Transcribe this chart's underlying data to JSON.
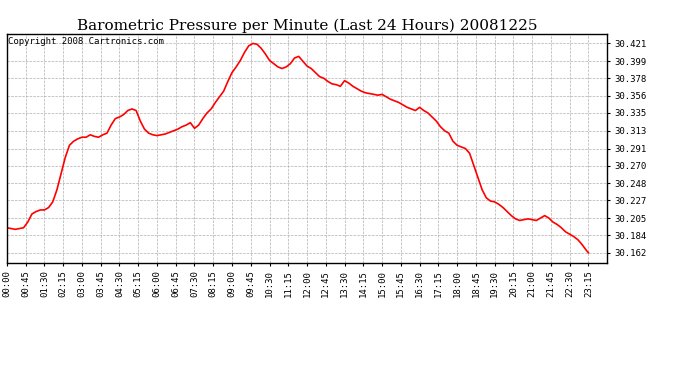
{
  "title": "Barometric Pressure per Minute (Last 24 Hours) 20081225",
  "copyright": "Copyright 2008 Cartronics.com",
  "line_color": "#ff0000",
  "background_color": "#ffffff",
  "grid_color": "#b0b0b0",
  "yticks": [
    30.162,
    30.184,
    30.205,
    30.227,
    30.248,
    30.27,
    30.291,
    30.313,
    30.335,
    30.356,
    30.378,
    30.399,
    30.421
  ],
  "ylim": [
    30.15,
    30.433
  ],
  "xtick_labels": [
    "00:00",
    "00:45",
    "01:30",
    "02:15",
    "03:00",
    "03:45",
    "04:30",
    "05:15",
    "06:00",
    "06:45",
    "07:30",
    "08:15",
    "09:00",
    "09:45",
    "10:30",
    "11:15",
    "12:00",
    "12:45",
    "13:30",
    "14:15",
    "15:00",
    "15:45",
    "16:30",
    "17:15",
    "18:00",
    "18:45",
    "19:30",
    "20:15",
    "21:00",
    "21:45",
    "22:30",
    "23:15"
  ],
  "title_fontsize": 11,
  "copyright_fontsize": 6.5,
  "tick_fontsize": 6.5,
  "line_width": 1.2,
  "x_minutes": [
    0,
    10,
    20,
    30,
    40,
    50,
    60,
    70,
    80,
    90,
    100,
    110,
    120,
    130,
    140,
    150,
    160,
    170,
    180,
    190,
    200,
    210,
    220,
    230,
    240,
    250,
    260,
    270,
    280,
    290,
    300,
    310,
    320,
    330,
    340,
    350,
    360,
    370,
    380,
    390,
    400,
    410,
    420,
    430,
    440,
    450,
    460,
    470,
    480,
    490,
    500,
    510,
    520,
    530,
    540,
    550,
    560,
    570,
    580,
    590,
    600,
    610,
    620,
    630,
    640,
    650,
    660,
    670,
    680,
    690,
    700,
    710,
    720,
    730,
    740,
    750,
    760,
    770,
    780,
    790,
    800,
    810,
    820,
    830,
    840,
    850,
    860,
    870,
    880,
    890,
    900,
    910,
    920,
    930,
    940,
    950,
    960,
    970,
    980,
    990,
    1000,
    1010,
    1020,
    1030,
    1040,
    1050,
    1060,
    1070,
    1080,
    1090,
    1100,
    1110,
    1120,
    1130,
    1140,
    1150,
    1160,
    1170,
    1180,
    1190,
    1200,
    1210,
    1220,
    1230,
    1240,
    1250,
    1260,
    1270,
    1280,
    1290,
    1300,
    1310,
    1320,
    1330,
    1340,
    1350,
    1360,
    1370,
    1380,
    1390,
    1395
  ],
  "y_values": [
    30.193,
    30.192,
    30.191,
    30.192,
    30.193,
    30.2,
    30.21,
    30.213,
    30.215,
    30.215,
    30.218,
    30.225,
    30.24,
    30.26,
    30.28,
    30.295,
    30.3,
    30.303,
    30.305,
    30.305,
    30.308,
    30.306,
    30.305,
    30.308,
    30.31,
    30.32,
    30.328,
    30.33,
    30.333,
    30.338,
    30.34,
    30.338,
    30.325,
    30.315,
    30.31,
    30.308,
    30.307,
    30.308,
    30.309,
    30.311,
    30.313,
    30.315,
    30.318,
    30.32,
    30.323,
    30.316,
    30.32,
    30.328,
    30.335,
    30.34,
    30.348,
    30.355,
    30.362,
    30.374,
    30.385,
    30.392,
    30.4,
    30.41,
    30.418,
    30.421,
    30.42,
    30.415,
    30.408,
    30.4,
    30.396,
    30.392,
    30.39,
    30.392,
    30.396,
    30.403,
    30.405,
    30.399,
    30.393,
    30.39,
    30.385,
    30.38,
    30.378,
    30.374,
    30.371,
    30.37,
    30.368,
    30.375,
    30.372,
    30.368,
    30.365,
    30.362,
    30.36,
    30.359,
    30.358,
    30.357,
    30.358,
    30.355,
    30.352,
    30.35,
    30.348,
    30.345,
    30.342,
    30.34,
    30.338,
    30.342,
    30.338,
    30.335,
    30.33,
    30.325,
    30.318,
    30.313,
    30.31,
    30.3,
    30.295,
    30.293,
    30.291,
    30.285,
    30.27,
    30.255,
    30.24,
    30.23,
    30.226,
    30.225,
    30.222,
    30.218,
    30.213,
    30.208,
    30.204,
    30.202,
    30.203,
    30.204,
    30.203,
    30.202,
    30.205,
    30.208,
    30.205,
    30.2,
    30.197,
    30.193,
    30.188,
    30.185,
    30.182,
    30.178,
    30.172,
    30.165,
    30.162
  ]
}
